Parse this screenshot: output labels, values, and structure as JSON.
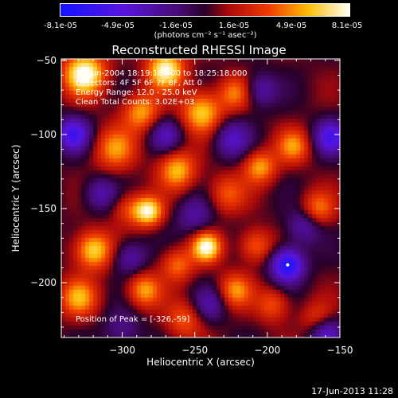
{
  "colorbar": {
    "tick_labels": [
      "-8.1e-05",
      "-4.9e-05",
      "-1.6e-05",
      "1.6e-05",
      "4.9e-05",
      "8.1e-05"
    ],
    "unit_label": "(photons cm⁻² s⁻¹ asec⁻²)"
  },
  "chart_data": {
    "type": "heatmap",
    "title": "Reconstructed RHESSI Image",
    "xlabel": "Heliocentric X (arcsec)",
    "ylabel": "Heliocentric Y (arcsec)",
    "xlim": [
      -342,
      -150
    ],
    "ylim": [
      -237,
      -49
    ],
    "xticks": [
      -300,
      -250,
      -200,
      -150
    ],
    "xtick_labels": [
      "−300",
      "−250",
      "−200",
      "−150"
    ],
    "yticks": [
      -50,
      -100,
      -150,
      -200
    ],
    "ytick_labels": [
      "−50",
      "−100",
      "−150",
      "−200"
    ],
    "colorbar_range": [
      -8.1e-05,
      8.1e-05
    ],
    "peak": {
      "x": -326,
      "y": -59
    },
    "blobs": [
      {
        "x": -326,
        "y": -59,
        "value": 8.1e-05,
        "width": 10
      },
      {
        "x": -270,
        "y": -56,
        "value": 7.5e-05,
        "width": 9
      },
      {
        "x": -245,
        "y": -85,
        "value": 6e-05,
        "width": 10
      },
      {
        "x": -287,
        "y": -85,
        "value": 5e-05,
        "width": 9
      },
      {
        "x": -222,
        "y": -72,
        "value": 4e-05,
        "width": 8
      },
      {
        "x": -262,
        "y": -124,
        "value": 5.5e-05,
        "width": 9
      },
      {
        "x": -305,
        "y": -110,
        "value": 4.5e-05,
        "width": 10
      },
      {
        "x": -296,
        "y": -150,
        "value": 3e-05,
        "width": 8
      },
      {
        "x": -282,
        "y": -152,
        "value": 7e-05,
        "width": 7
      },
      {
        "x": -242,
        "y": -176,
        "value": 7.5e-05,
        "width": 7
      },
      {
        "x": -262,
        "y": -188,
        "value": 4e-05,
        "width": 8
      },
      {
        "x": -320,
        "y": -178,
        "value": 6.5e-05,
        "width": 9
      },
      {
        "x": -330,
        "y": -210,
        "value": 5e-05,
        "width": 9
      },
      {
        "x": -285,
        "y": -205,
        "value": 5e-05,
        "width": 8
      },
      {
        "x": -205,
        "y": -122,
        "value": 5e-05,
        "width": 8
      },
      {
        "x": -182,
        "y": -108,
        "value": 4.5e-05,
        "width": 8
      },
      {
        "x": -208,
        "y": -175,
        "value": 4e-05,
        "width": 8
      },
      {
        "x": -228,
        "y": -140,
        "value": 3.5e-05,
        "width": 9
      },
      {
        "x": -165,
        "y": -150,
        "value": 4e-05,
        "width": 8
      },
      {
        "x": -222,
        "y": -205,
        "value": 4.5e-05,
        "width": 8
      },
      {
        "x": -196,
        "y": -215,
        "value": 3.5e-05,
        "width": 8
      },
      {
        "x": -165,
        "y": -225,
        "value": 3.5e-05,
        "width": 8
      },
      {
        "x": -257,
        "y": -225,
        "value": 3.5e-05,
        "width": 9
      },
      {
        "x": -186,
        "y": -188,
        "value": -8.1e-05,
        "width": 8
      },
      {
        "x": -334,
        "y": -100,
        "value": -6e-05,
        "width": 8
      },
      {
        "x": -156,
        "y": -102,
        "value": -5.5e-05,
        "width": 8
      },
      {
        "x": -225,
        "y": -103,
        "value": -4e-05,
        "width": 9
      },
      {
        "x": -270,
        "y": -100,
        "value": -3.5e-05,
        "width": 8
      },
      {
        "x": -315,
        "y": -140,
        "value": -3.5e-05,
        "width": 8
      },
      {
        "x": -250,
        "y": -155,
        "value": -3e-05,
        "width": 9
      },
      {
        "x": -295,
        "y": -183,
        "value": -3.5e-05,
        "width": 8
      },
      {
        "x": -175,
        "y": -162,
        "value": -3.5e-05,
        "width": 8
      },
      {
        "x": -160,
        "y": -233,
        "value": -5e-05,
        "width": 8
      },
      {
        "x": -240,
        "y": -215,
        "value": -3e-05,
        "width": 8
      },
      {
        "x": -205,
        "y": -70,
        "value": -3.5e-05,
        "width": 8
      },
      {
        "x": -300,
        "y": -232,
        "value": -2.5e-05,
        "width": 9
      }
    ]
  },
  "annotations": {
    "time_range": "18-Jun-2004 18:19:18.000 to 18:25:18.000",
    "detectors": "Detectors: 4F 5F 6F 7F 8F, Att 0",
    "energy_range": "Energy Range: 12.0 - 25.0 keV",
    "method_counts": "Clean     Total Counts: 3.02E+03",
    "peak_position": "Position of Peak = [-326,-59]"
  },
  "footer": {
    "date": "17-Jun-2013 11:28"
  }
}
